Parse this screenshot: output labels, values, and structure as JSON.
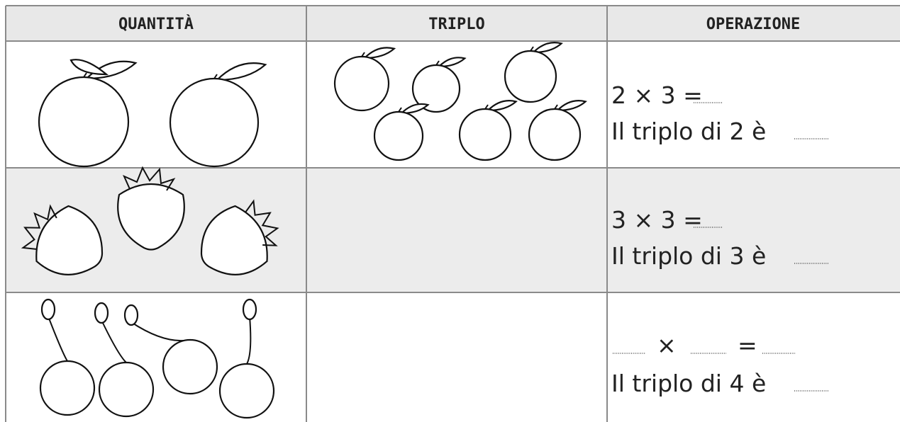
{
  "table": {
    "header": [
      "QUANTITÀ",
      "TRIPLO",
      "OPERAZIONE"
    ],
    "rows": [
      {
        "line1": "2 × 3 =",
        "line2": "Il triplo di 2 è"
      },
      {
        "line1": "3 × 3 =",
        "line2": "Il triplo di 3 è"
      },
      {
        "line1_parts": [
          "×",
          "="
        ],
        "line2": "Il triplo di 4 è"
      }
    ]
  }
}
